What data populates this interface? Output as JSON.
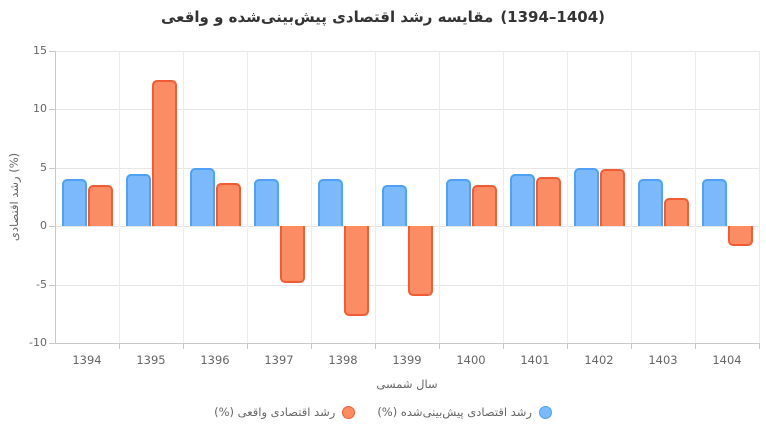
{
  "title": {
    "text": "مقایسه رشد اقتصادی پیش‌بینی‌شده و واقعی",
    "year_range": "(1394–1404)"
  },
  "chart_data": {
    "type": "bar",
    "categories": [
      "1394",
      "1395",
      "1396",
      "1397",
      "1398",
      "1399",
      "1400",
      "1401",
      "1402",
      "1403",
      "1404"
    ],
    "series": [
      {
        "name": "رشد اقتصادی پیش‌بینی‌شده (%)",
        "key": "predicted",
        "fill_color": "#7BB9FA",
        "border_color": "#4FA1F5",
        "values": [
          4.0,
          4.5,
          5.0,
          4.0,
          4.0,
          3.5,
          4.0,
          4.5,
          5.0,
          4.0,
          4.0
        ]
      },
      {
        "name": "رشد اقتصادی واقعی (%)",
        "key": "actual",
        "fill_color": "#FB8C63",
        "border_color": "#F25C35",
        "values": [
          3.5,
          12.5,
          3.7,
          -4.9,
          -7.7,
          -6.0,
          3.5,
          4.2,
          4.9,
          2.4,
          -1.7
        ]
      }
    ],
    "title": "مقایسه رشد اقتصادی پیش‌بینی‌شده و واقعی (1394–1404)",
    "xlabel": "سال شمسی",
    "ylabel": "رشد اقتصادی (%)",
    "ylim": [
      -10,
      15
    ],
    "yticks": [
      15,
      10,
      5,
      0,
      -5,
      -10
    ],
    "grid": true,
    "legend_position": "bottom"
  },
  "legend": {
    "predicted": "رشد اقتصادی پیش‌بینی‌شده (%)",
    "actual": "رشد اقتصادی واقعی (%)"
  }
}
